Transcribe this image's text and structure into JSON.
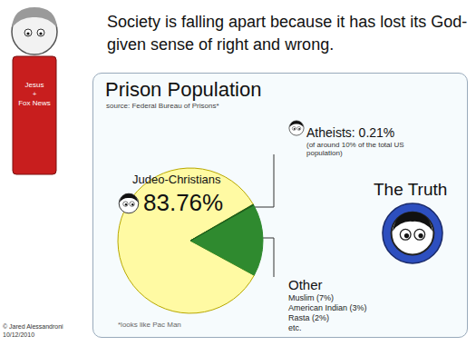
{
  "comic": {
    "caption": "Society is falling apart because it has lost its God-given sense of right and wrong.",
    "shirt": [
      "Jesus",
      "+",
      "Fox News"
    ],
    "truth": "The Truth",
    "footnote": "*looks like Pac Man",
    "credit": "© Jared Alessandroni",
    "date": "10/12/2010"
  },
  "chart_data": {
    "type": "pie",
    "title": "Prison Population",
    "subtitle": "source: Federal Bureau of Prisons*",
    "categories": [
      "Judeo-Christians",
      "Other",
      "Atheists"
    ],
    "values": [
      83.76,
      16.03,
      0.21
    ],
    "value_labels": [
      "83.76%",
      null,
      "0.21%"
    ],
    "colors": [
      "#fffaa3",
      "#2f8a2f",
      "#1d5e1d"
    ],
    "data_labels": true,
    "annotations": {
      "Atheists": "(of around 10% of the total US population)",
      "Other": [
        "Muslim (7%)",
        "American Indian (3%)",
        "Rasta (2%)",
        "etc."
      ]
    }
  }
}
